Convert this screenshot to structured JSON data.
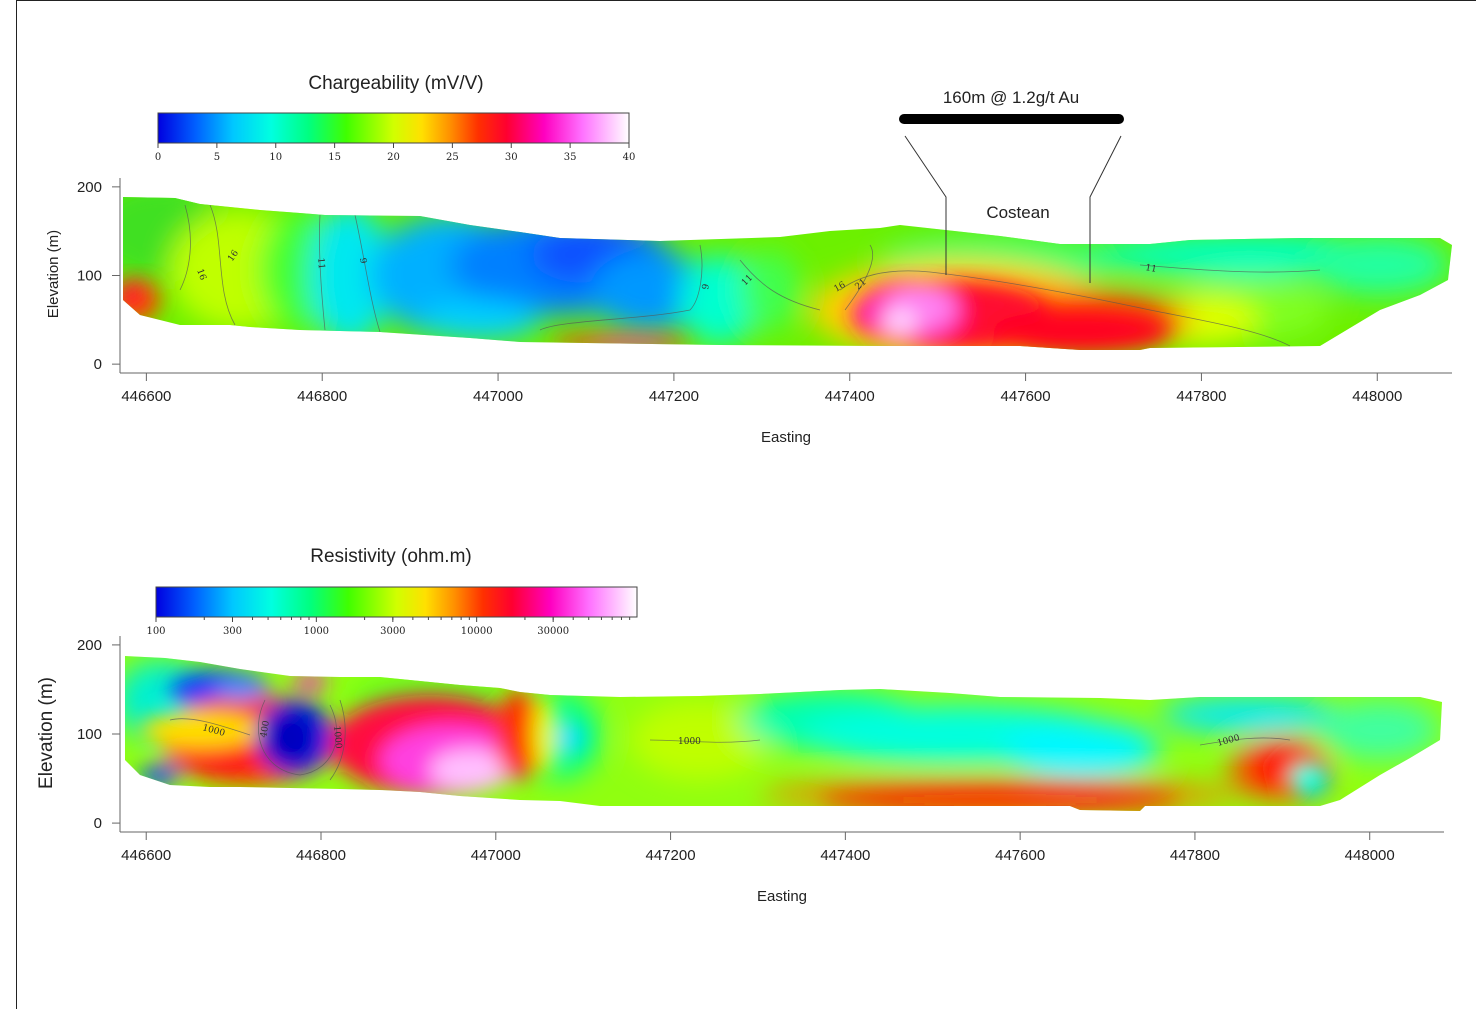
{
  "chart_data": [
    {
      "type": "heatmap",
      "title": "Chargeability (mV/V)",
      "xlabel": "Easting",
      "ylabel": "Elevation (m)",
      "xlim": [
        446570,
        448085
      ],
      "ylim": [
        -10,
        210
      ],
      "x_ticks": [
        446600,
        446800,
        447000,
        447200,
        447400,
        447600,
        447800,
        448000
      ],
      "y_ticks": [
        0,
        100,
        200
      ],
      "colorbar": {
        "min": 0,
        "max": 40,
        "ticks": [
          0,
          5,
          10,
          15,
          20,
          25,
          30,
          35,
          40
        ],
        "scale": "linear"
      },
      "contour_labels": [
        "16",
        "16",
        "11",
        "9",
        "9",
        "11",
        "16",
        "21",
        "11"
      ],
      "annotations": {
        "intercept": "160m @ 1.2g/t Au",
        "costean": "Costean"
      }
    },
    {
      "type": "heatmap",
      "title": "Resistivity (ohm.m)",
      "xlabel": "Easting",
      "ylabel": "Elevation (m)",
      "xlim": [
        446570,
        448085
      ],
      "ylim": [
        -10,
        210
      ],
      "x_ticks": [
        446600,
        446800,
        447000,
        447200,
        447400,
        447600,
        447800,
        448000
      ],
      "y_ticks": [
        0,
        100,
        200
      ],
      "colorbar": {
        "min": 100,
        "max": 100000,
        "ticks": [
          100,
          300,
          1000,
          3000,
          10000,
          30000
        ],
        "scale": "log"
      },
      "contour_labels": [
        "1000",
        "400",
        "1000",
        "1000",
        "1000"
      ]
    }
  ],
  "colors": {
    "palette": [
      "#0000e6",
      "#0064ff",
      "#00c8ff",
      "#00ffdc",
      "#00ff64",
      "#64ff00",
      "#dcff00",
      "#ffdc00",
      "#ff8c00",
      "#ff3200",
      "#ff0028",
      "#ff00b4",
      "#ff64ff",
      "#ffc8ff",
      "#ffffff"
    ]
  }
}
